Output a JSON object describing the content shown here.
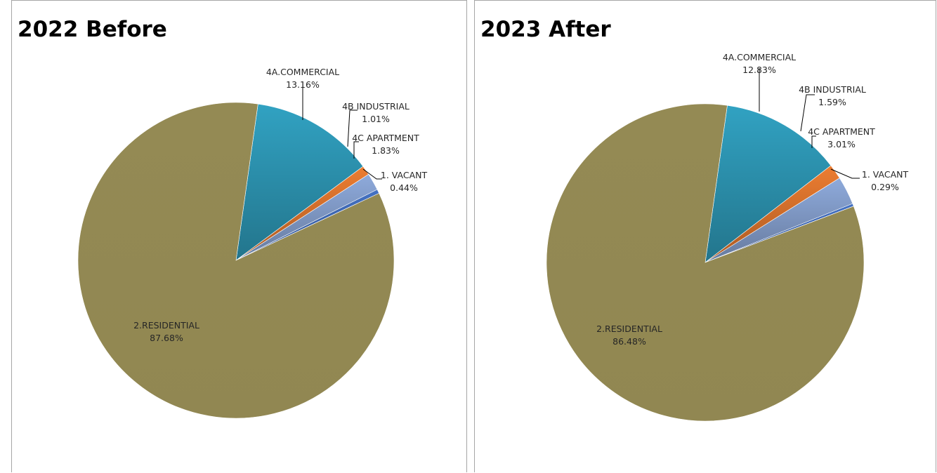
{
  "chart_data": [
    {
      "type": "pie",
      "title": "2022 Before",
      "slices": [
        {
          "label": "1. VACANT",
          "value": 0.44,
          "value_label": "0.44%",
          "color": "#4472c4"
        },
        {
          "label": "2.RESIDENTIAL",
          "value": 87.68,
          "value_label": "87.68%",
          "color": "#948a54"
        },
        {
          "label": "4A.COMMERCIAL",
          "value": 13.16,
          "value_label": "13.16%",
          "color": "#31a2c2"
        },
        {
          "label": "4B INDUSTRIAL",
          "value": 1.01,
          "value_label": "1.01%",
          "color": "#ed7d31"
        },
        {
          "label": "4C APARTMENT",
          "value": 1.83,
          "value_label": "1.83%",
          "color": "#8eaadb"
        }
      ]
    },
    {
      "type": "pie",
      "title": "2023 After",
      "slices": [
        {
          "label": "1. VACANT",
          "value": 0.29,
          "value_label": "0.29%",
          "color": "#4472c4"
        },
        {
          "label": "2.RESIDENTIAL",
          "value": 86.48,
          "value_label": "86.48%",
          "color": "#948a54"
        },
        {
          "label": "4A.COMMERCIAL",
          "value": 12.83,
          "value_label": "12.83%",
          "color": "#31a2c2"
        },
        {
          "label": "4B INDUSTRIAL",
          "value": 1.59,
          "value_label": "1.59%",
          "color": "#ed7d31"
        },
        {
          "label": "4C APARTMENT",
          "value": 3.01,
          "value_label": "3.01%",
          "color": "#8eaadb"
        }
      ]
    }
  ]
}
